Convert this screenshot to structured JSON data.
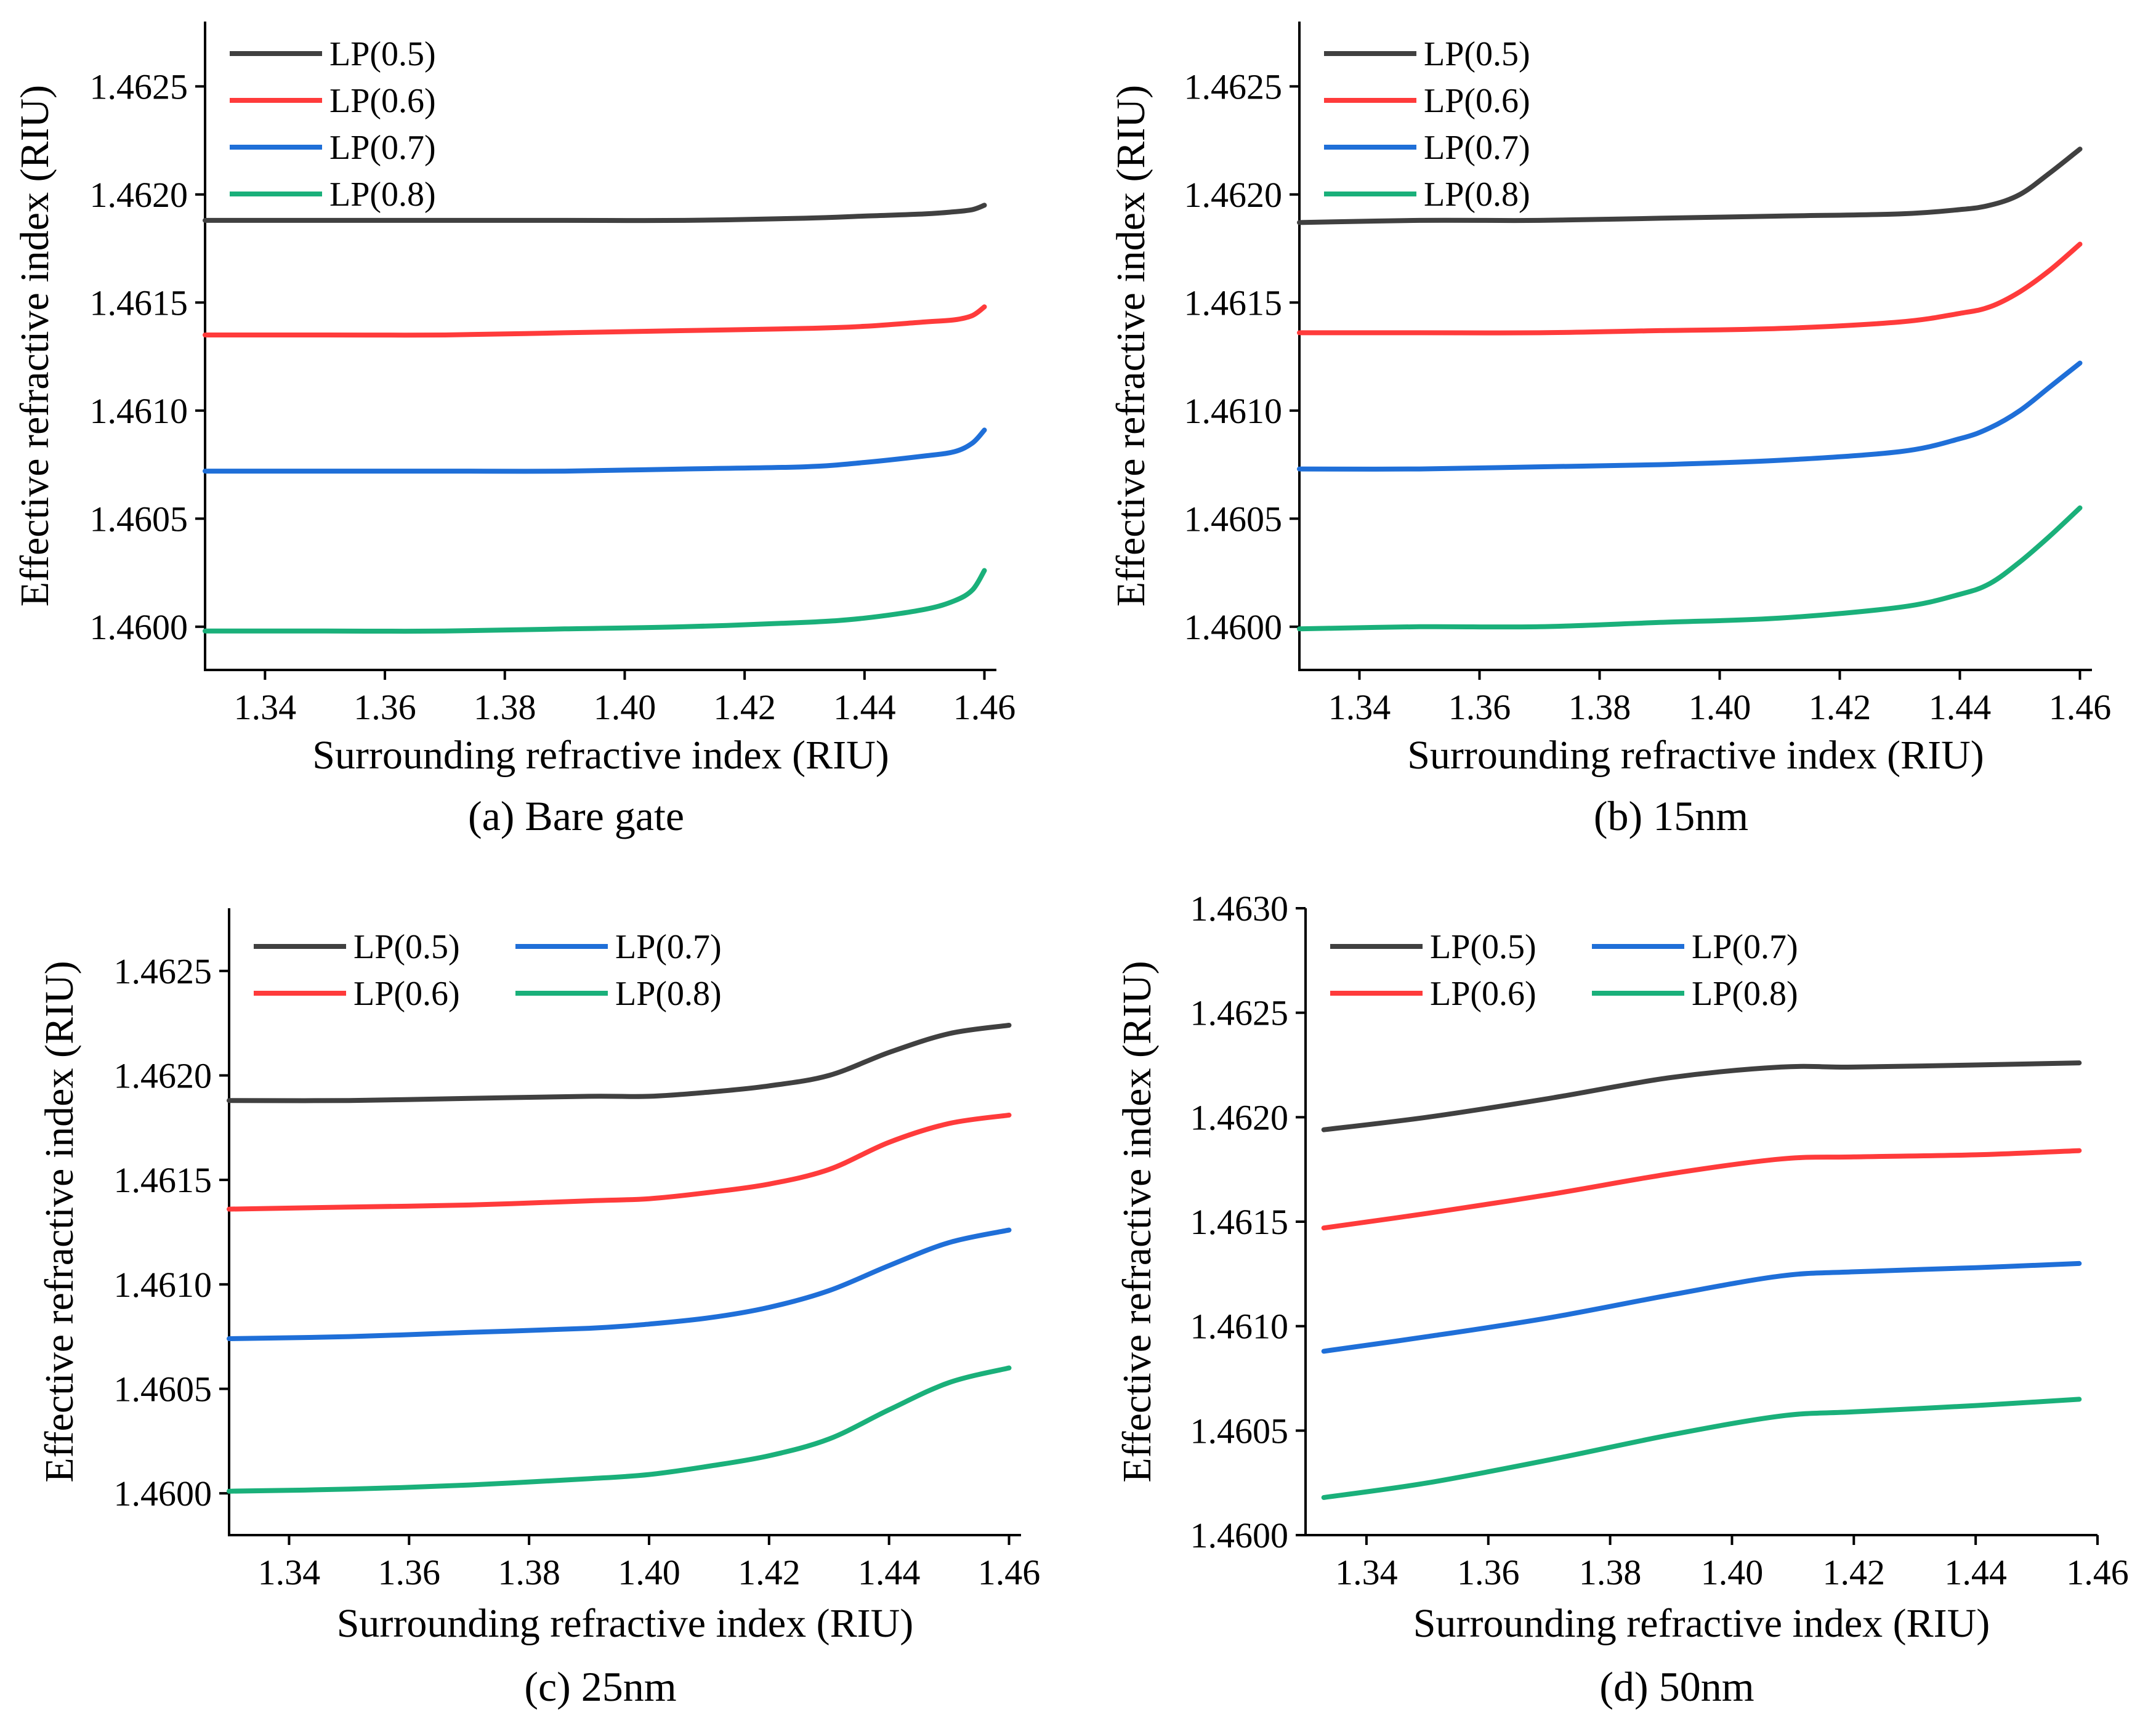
{
  "figure": {
    "panels": [
      {
        "caption": "(a) Bare gate",
        "xlabel": "Surrounding refractive index (RIU)",
        "ylabel": "Effective refractive index (RIU)",
        "xticks": [
          "1.34",
          "1.36",
          "1.38",
          "1.40",
          "1.42",
          "1.44",
          "1.46"
        ],
        "yticks": [
          "1.4600",
          "1.4605",
          "1.4610",
          "1.4615",
          "1.4620",
          "1.4625"
        ],
        "legend": [
          "LP(0.5)",
          "LP(0.6)",
          "LP(0.7)",
          "LP(0.8)"
        ]
      },
      {
        "caption": "(b) 15nm",
        "xlabel": "Surrounding refractive index (RIU)",
        "ylabel": "Effective refractive index (RIU)",
        "xticks": [
          "1.34",
          "1.36",
          "1.38",
          "1.40",
          "1.42",
          "1.44",
          "1.46"
        ],
        "yticks": [
          "1.4600",
          "1.4605",
          "1.4610",
          "1.4615",
          "1.4620",
          "1.4625"
        ],
        "legend": [
          "LP(0.5)",
          "LP(0.6)",
          "LP(0.7)",
          "LP(0.8)"
        ]
      },
      {
        "caption": "(c) 25nm",
        "xlabel": "Surrounding refractive index (RIU)",
        "ylabel": "Effective refractive index (RIU)",
        "xticks": [
          "1.34",
          "1.36",
          "1.38",
          "1.40",
          "1.42",
          "1.44",
          "1.46"
        ],
        "yticks": [
          "1.4600",
          "1.4605",
          "1.4610",
          "1.4615",
          "1.4620",
          "1.4625"
        ],
        "legend": [
          "LP(0.5)",
          "LP(0.7)",
          "LP(0.6)",
          "LP(0.8)"
        ]
      },
      {
        "caption": "(d) 50nm",
        "xlabel": "Surrounding refractive index (RIU)",
        "ylabel": "Effective refractive index (RIU)",
        "xticks": [
          "1.34",
          "1.36",
          "1.38",
          "1.40",
          "1.42",
          "1.44",
          "1.46"
        ],
        "yticks": [
          "1.4600",
          "1.4605",
          "1.4610",
          "1.4615",
          "1.4620",
          "1.4625",
          "1.4630"
        ],
        "legend": [
          "LP(0.5)",
          "LP(0.7)",
          "LP(0.6)",
          "LP(0.8)"
        ]
      }
    ]
  },
  "chart_data": [
    {
      "type": "line",
      "title": "(a) Bare gate",
      "xlabel": "Surrounding refractive index (RIU)",
      "ylabel": "Effective refractive index (RIU)",
      "xlim": [
        1.33,
        1.462
      ],
      "ylim": [
        1.4598,
        1.4628
      ],
      "legend_position": "top-left",
      "x": [
        1.33,
        1.35,
        1.37,
        1.39,
        1.41,
        1.43,
        1.44,
        1.45,
        1.455,
        1.458,
        1.46
      ],
      "series": [
        {
          "name": "LP(0.5)",
          "color": "#404040",
          "values": [
            1.46188,
            1.46188,
            1.46188,
            1.46188,
            1.46188,
            1.46189,
            1.4619,
            1.46191,
            1.46192,
            1.46193,
            1.46195
          ]
        },
        {
          "name": "LP(0.6)",
          "color": "#ff3b3b",
          "values": [
            1.46135,
            1.46135,
            1.46135,
            1.46136,
            1.46137,
            1.46138,
            1.46139,
            1.46141,
            1.46142,
            1.46144,
            1.46148
          ]
        },
        {
          "name": "LP(0.7)",
          "color": "#1f6fd8",
          "values": [
            1.46072,
            1.46072,
            1.46072,
            1.46072,
            1.46073,
            1.46074,
            1.46076,
            1.46079,
            1.46081,
            1.46085,
            1.46091
          ]
        },
        {
          "name": "LP(0.8)",
          "color": "#1ab07a",
          "values": [
            1.45998,
            1.45998,
            1.45998,
            1.45999,
            1.46,
            1.46002,
            1.46004,
            1.46008,
            1.46012,
            1.46017,
            1.46026
          ]
        }
      ]
    },
    {
      "type": "line",
      "title": "(b) 15nm",
      "xlabel": "Surrounding refractive index (RIU)",
      "ylabel": "Effective refractive index (RIU)",
      "xlim": [
        1.33,
        1.462
      ],
      "ylim": [
        1.4598,
        1.4628
      ],
      "legend_position": "top-left",
      "x": [
        1.33,
        1.35,
        1.37,
        1.39,
        1.41,
        1.43,
        1.44,
        1.445,
        1.45,
        1.455,
        1.46
      ],
      "series": [
        {
          "name": "LP(0.5)",
          "color": "#404040",
          "values": [
            1.46187,
            1.46188,
            1.46188,
            1.46189,
            1.4619,
            1.46191,
            1.46193,
            1.46195,
            1.462,
            1.4621,
            1.46221
          ]
        },
        {
          "name": "LP(0.6)",
          "color": "#ff3b3b",
          "values": [
            1.46136,
            1.46136,
            1.46136,
            1.46137,
            1.46138,
            1.46141,
            1.46145,
            1.46148,
            1.46155,
            1.46165,
            1.46177
          ]
        },
        {
          "name": "LP(0.7)",
          "color": "#1f6fd8",
          "values": [
            1.46073,
            1.46073,
            1.46074,
            1.46075,
            1.46077,
            1.46081,
            1.46087,
            1.46092,
            1.461,
            1.46111,
            1.46122
          ]
        },
        {
          "name": "LP(0.8)",
          "color": "#1ab07a",
          "values": [
            1.45999,
            1.46,
            1.46,
            1.46002,
            1.46004,
            1.46009,
            1.46015,
            1.4602,
            1.4603,
            1.46042,
            1.46055
          ]
        }
      ]
    },
    {
      "type": "line",
      "title": "(c) 25nm",
      "xlabel": "Surrounding refractive index (RIU)",
      "ylabel": "Effective refractive index (RIU)",
      "xlim": [
        1.33,
        1.462
      ],
      "ylim": [
        1.4598,
        1.4628
      ],
      "legend_position": "top-left",
      "x": [
        1.33,
        1.35,
        1.37,
        1.39,
        1.4,
        1.41,
        1.42,
        1.43,
        1.44,
        1.45,
        1.46
      ],
      "series": [
        {
          "name": "LP(0.5)",
          "color": "#404040",
          "values": [
            1.46188,
            1.46188,
            1.46189,
            1.4619,
            1.4619,
            1.46192,
            1.46195,
            1.462,
            1.46211,
            1.4622,
            1.46224
          ]
        },
        {
          "name": "LP(0.6)",
          "color": "#ff3b3b",
          "values": [
            1.46136,
            1.46137,
            1.46138,
            1.4614,
            1.46141,
            1.46144,
            1.46148,
            1.46155,
            1.46168,
            1.46177,
            1.46181
          ]
        },
        {
          "name": "LP(0.7)",
          "color": "#1f6fd8",
          "values": [
            1.46074,
            1.46075,
            1.46077,
            1.46079,
            1.46081,
            1.46084,
            1.46089,
            1.46097,
            1.46109,
            1.4612,
            1.46126
          ]
        },
        {
          "name": "LP(0.8)",
          "color": "#1ab07a",
          "values": [
            1.46001,
            1.46002,
            1.46004,
            1.46007,
            1.46009,
            1.46013,
            1.46018,
            1.46026,
            1.4604,
            1.46053,
            1.4606
          ]
        }
      ]
    },
    {
      "type": "line",
      "title": "(d) 50nm",
      "xlabel": "Surrounding refractive index (RIU)",
      "ylabel": "Effective refractive index (RIU)",
      "xlim": [
        1.33,
        1.46
      ],
      "ylim": [
        1.46,
        1.463
      ],
      "legend_position": "top-left",
      "x": [
        1.333,
        1.35,
        1.37,
        1.39,
        1.408,
        1.42,
        1.44,
        1.457
      ],
      "series": [
        {
          "name": "LP(0.5)",
          "color": "#404040",
          "values": [
            1.46194,
            1.462,
            1.46209,
            1.46219,
            1.46224,
            1.46224,
            1.46225,
            1.46226
          ]
        },
        {
          "name": "LP(0.6)",
          "color": "#ff3b3b",
          "values": [
            1.46147,
            1.46154,
            1.46163,
            1.46173,
            1.4618,
            1.46181,
            1.46182,
            1.46184
          ]
        },
        {
          "name": "LP(0.7)",
          "color": "#1f6fd8",
          "values": [
            1.46088,
            1.46095,
            1.46104,
            1.46115,
            1.46124,
            1.46126,
            1.46128,
            1.4613
          ]
        },
        {
          "name": "LP(0.8)",
          "color": "#1ab07a",
          "values": [
            1.46018,
            1.46025,
            1.46036,
            1.46048,
            1.46057,
            1.46059,
            1.46062,
            1.46065
          ]
        }
      ]
    }
  ]
}
